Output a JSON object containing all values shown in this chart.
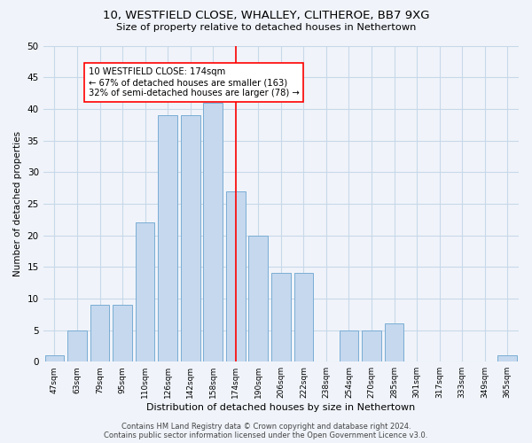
{
  "title1": "10, WESTFIELD CLOSE, WHALLEY, CLITHEROE, BB7 9XG",
  "title2": "Size of property relative to detached houses in Nethertown",
  "xlabel": "Distribution of detached houses by size in Nethertown",
  "ylabel": "Number of detached properties",
  "categories": [
    "47sqm",
    "63sqm",
    "79sqm",
    "95sqm",
    "110sqm",
    "126sqm",
    "142sqm",
    "158sqm",
    "174sqm",
    "190sqm",
    "206sqm",
    "222sqm",
    "238sqm",
    "254sqm",
    "270sqm",
    "285sqm",
    "301sqm",
    "317sqm",
    "333sqm",
    "349sqm",
    "365sqm"
  ],
  "values": [
    1,
    5,
    9,
    9,
    22,
    39,
    39,
    41,
    27,
    20,
    14,
    14,
    0,
    5,
    5,
    6,
    0,
    0,
    0,
    0,
    1
  ],
  "bar_color": "#c5d8ee",
  "bar_edge_color": "#7aadd4",
  "highlight_index": 8,
  "ylim": [
    0,
    50
  ],
  "yticks": [
    0,
    5,
    10,
    15,
    20,
    25,
    30,
    35,
    40,
    45,
    50
  ],
  "annotation_title": "10 WESTFIELD CLOSE: 174sqm",
  "annotation_line1": "← 67% of detached houses are smaller (163)",
  "annotation_line2": "32% of semi-detached houses are larger (78) →",
  "footer1": "Contains HM Land Registry data © Crown copyright and database right 2024.",
  "footer2": "Contains public sector information licensed under the Open Government Licence v3.0.",
  "bg_color": "#f0f4fa",
  "grid_color": "#c8d8e8"
}
